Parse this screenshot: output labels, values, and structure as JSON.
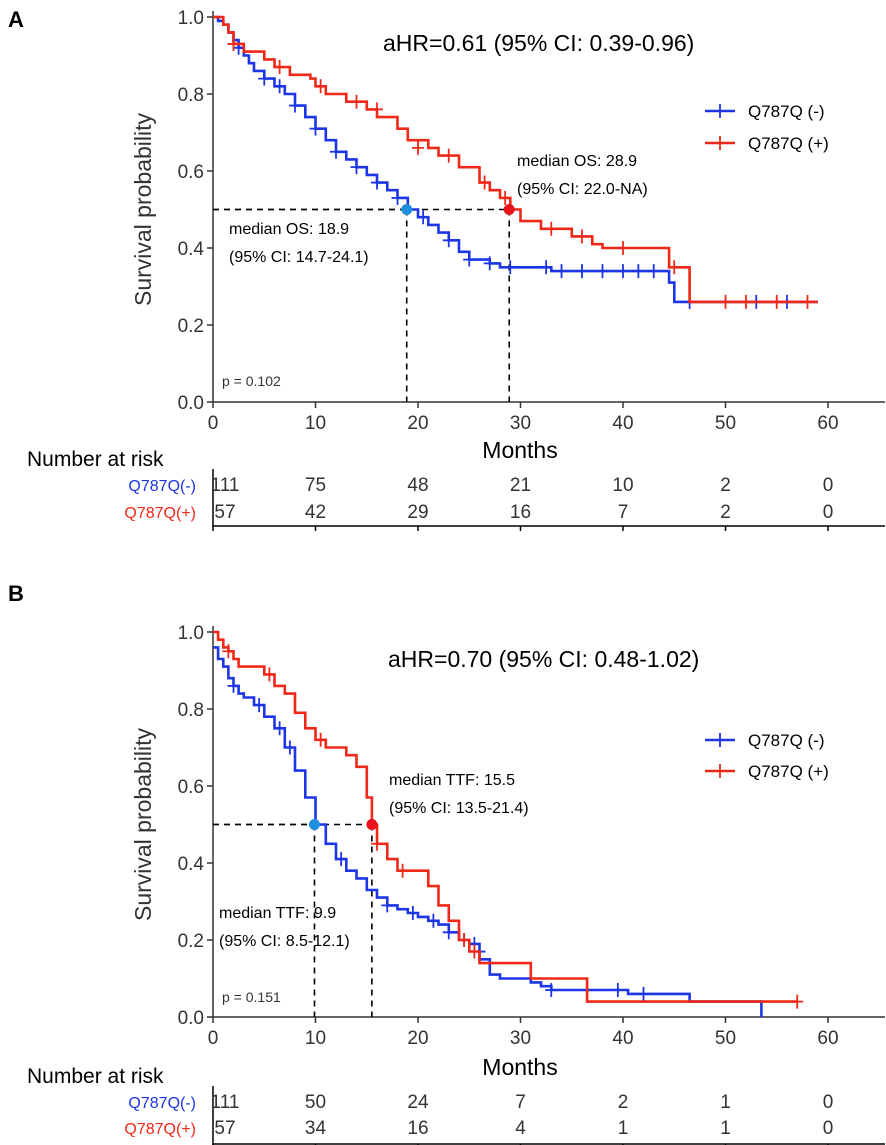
{
  "chart_data": [
    {
      "panel": "A",
      "type": "line",
      "subtype": "kaplan-meier",
      "title": "",
      "hr_text": "aHR=0.61 (95% CI: 0.39-0.96)",
      "xlabel": "Months",
      "ylabel": "Survival probability",
      "xlim": [
        0,
        65
      ],
      "ylim": [
        0,
        1
      ],
      "xticks": [
        "0",
        "10",
        "20",
        "30",
        "40",
        "50",
        "60"
      ],
      "yticks": [
        "0.0",
        "0.2",
        "0.4",
        "0.6",
        "0.8",
        "1.0"
      ],
      "pvalue": "p = 0.102",
      "legend": [
        "Q787Q (-)",
        "Q787Q (+)"
      ],
      "series": [
        {
          "name": "Q787Q (-)",
          "color": "#1c35e6",
          "steps": [
            [
              0,
              1.0
            ],
            [
              0.5,
              0.99
            ],
            [
              1,
              0.98
            ],
            [
              1.5,
              0.96
            ],
            [
              2,
              0.94
            ],
            [
              2.5,
              0.92
            ],
            [
              3,
              0.9
            ],
            [
              3.5,
              0.88
            ],
            [
              4,
              0.86
            ],
            [
              5,
              0.84
            ],
            [
              6,
              0.82
            ],
            [
              7,
              0.8
            ],
            [
              8,
              0.77
            ],
            [
              9,
              0.74
            ],
            [
              10,
              0.71
            ],
            [
              11,
              0.68
            ],
            [
              12,
              0.65
            ],
            [
              13,
              0.63
            ],
            [
              14,
              0.61
            ],
            [
              15,
              0.59
            ],
            [
              16,
              0.57
            ],
            [
              17,
              0.55
            ],
            [
              18,
              0.53
            ],
            [
              19,
              0.5
            ],
            [
              20,
              0.48
            ],
            [
              21,
              0.46
            ],
            [
              22,
              0.44
            ],
            [
              23,
              0.42
            ],
            [
              24,
              0.39
            ],
            [
              25,
              0.37
            ],
            [
              27,
              0.36
            ],
            [
              28,
              0.35
            ],
            [
              32,
              0.35
            ],
            [
              33,
              0.34
            ],
            [
              44,
              0.34
            ],
            [
              44.5,
              0.31
            ],
            [
              45,
              0.26
            ],
            [
              59,
              0.26
            ]
          ],
          "censors": [
            [
              2.5,
              0.92
            ],
            [
              5,
              0.84
            ],
            [
              6.5,
              0.82
            ],
            [
              8,
              0.77
            ],
            [
              10,
              0.71
            ],
            [
              12,
              0.65
            ],
            [
              14,
              0.61
            ],
            [
              16,
              0.57
            ],
            [
              18,
              0.53
            ],
            [
              20.5,
              0.48
            ],
            [
              23,
              0.42
            ],
            [
              25,
              0.37
            ],
            [
              27,
              0.36
            ],
            [
              29,
              0.35
            ],
            [
              32.5,
              0.35
            ],
            [
              34,
              0.34
            ],
            [
              36,
              0.34
            ],
            [
              38,
              0.34
            ],
            [
              40,
              0.34
            ],
            [
              41.5,
              0.34
            ],
            [
              43,
              0.34
            ],
            [
              46.5,
              0.26
            ],
            [
              53,
              0.26
            ],
            [
              56,
              0.26
            ]
          ],
          "median_x": 18.9
        },
        {
          "name": "Q787Q (+)",
          "color": "#f02818",
          "steps": [
            [
              0,
              1.0
            ],
            [
              1,
              0.98
            ],
            [
              1.5,
              0.96
            ],
            [
              2,
              0.93
            ],
            [
              3,
              0.91
            ],
            [
              4.5,
              0.91
            ],
            [
              5,
              0.89
            ],
            [
              6,
              0.87
            ],
            [
              7,
              0.87
            ],
            [
              7.5,
              0.85
            ],
            [
              9,
              0.85
            ],
            [
              9.5,
              0.84
            ],
            [
              10,
              0.82
            ],
            [
              11,
              0.8
            ],
            [
              13,
              0.78
            ],
            [
              15,
              0.76
            ],
            [
              16,
              0.74
            ],
            [
              18,
              0.71
            ],
            [
              19,
              0.68
            ],
            [
              21,
              0.66
            ],
            [
              22,
              0.64
            ],
            [
              24,
              0.61
            ],
            [
              26,
              0.57
            ],
            [
              27,
              0.55
            ],
            [
              28,
              0.53
            ],
            [
              29,
              0.5
            ],
            [
              30,
              0.47
            ],
            [
              32,
              0.45
            ],
            [
              35,
              0.43
            ],
            [
              37,
              0.41
            ],
            [
              38,
              0.4
            ],
            [
              44,
              0.4
            ],
            [
              44.5,
              0.35
            ],
            [
              46,
              0.35
            ],
            [
              46.5,
              0.26
            ],
            [
              59,
              0.26
            ]
          ],
          "censors": [
            [
              2,
              0.93
            ],
            [
              6.5,
              0.87
            ],
            [
              10.5,
              0.82
            ],
            [
              14,
              0.78
            ],
            [
              16,
              0.76
            ],
            [
              20,
              0.66
            ],
            [
              23,
              0.64
            ],
            [
              26.5,
              0.57
            ],
            [
              28.5,
              0.53
            ],
            [
              33,
              0.45
            ],
            [
              36,
              0.43
            ],
            [
              40,
              0.4
            ],
            [
              45,
              0.35
            ],
            [
              50,
              0.26
            ],
            [
              52,
              0.26
            ],
            [
              55,
              0.26
            ],
            [
              58,
              0.26
            ]
          ],
          "median_x": 28.9
        }
      ],
      "medians": [
        {
          "label": "median OS: 18.9",
          "ci": "(95% CI: 14.7-24.1)",
          "x": 18.9,
          "y": 0.5,
          "color": "#1e8fe0"
        },
        {
          "label": "median OS: 28.9",
          "ci": "(95% CI: 22.0-NA)",
          "x": 28.9,
          "y": 0.5,
          "color": "#e8131b"
        }
      ],
      "risk_table": {
        "title": "Number at risk",
        "rows": [
          {
            "label": "Q787Q(-)",
            "color": "#1c35e6",
            "values": [
              "111",
              "75",
              "48",
              "21",
              "10",
              "2",
              "0"
            ]
          },
          {
            "label": "Q787Q(+)",
            "color": "#f02818",
            "values": [
              "57",
              "42",
              "29",
              "16",
              "7",
              "2",
              "0"
            ]
          }
        ]
      }
    },
    {
      "panel": "B",
      "type": "line",
      "subtype": "kaplan-meier",
      "title": "",
      "hr_text": "aHR=0.70 (95% CI: 0.48-1.02)",
      "xlabel": "Months",
      "ylabel": "Survival probability",
      "xlim": [
        0,
        65
      ],
      "ylim": [
        0,
        1
      ],
      "xticks": [
        "0",
        "10",
        "20",
        "30",
        "40",
        "50",
        "60"
      ],
      "yticks": [
        "0.0",
        "0.2",
        "0.4",
        "0.6",
        "0.8",
        "1.0"
      ],
      "pvalue": "p = 0.151",
      "legend": [
        "Q787Q (-)",
        "Q787Q (+)"
      ],
      "series": [
        {
          "name": "Q787Q (-)",
          "color": "#1c35e6",
          "steps": [
            [
              0,
              0.96
            ],
            [
              0.5,
              0.93
            ],
            [
              1,
              0.91
            ],
            [
              1.5,
              0.88
            ],
            [
              2,
              0.86
            ],
            [
              2.5,
              0.84
            ],
            [
              3,
              0.83
            ],
            [
              4,
              0.81
            ],
            [
              5,
              0.78
            ],
            [
              6,
              0.75
            ],
            [
              7,
              0.7
            ],
            [
              8,
              0.64
            ],
            [
              9,
              0.57
            ],
            [
              10,
              0.5
            ],
            [
              11,
              0.45
            ],
            [
              12,
              0.41
            ],
            [
              13,
              0.38
            ],
            [
              14,
              0.36
            ],
            [
              15,
              0.33
            ],
            [
              16,
              0.31
            ],
            [
              17,
              0.29
            ],
            [
              18,
              0.28
            ],
            [
              19,
              0.27
            ],
            [
              20,
              0.26
            ],
            [
              21,
              0.25
            ],
            [
              22,
              0.24
            ],
            [
              23,
              0.22
            ],
            [
              24,
              0.2
            ],
            [
              25,
              0.19
            ],
            [
              26,
              0.15
            ],
            [
              27,
              0.11
            ],
            [
              28,
              0.1
            ],
            [
              31,
              0.09
            ],
            [
              32,
              0.08
            ],
            [
              33,
              0.07
            ],
            [
              40,
              0.07
            ],
            [
              40.5,
              0.06
            ],
            [
              46,
              0.06
            ],
            [
              46.5,
              0.04
            ],
            [
              53,
              0.04
            ],
            [
              53.5,
              0.0
            ]
          ],
          "censors": [
            [
              2,
              0.86
            ],
            [
              4.5,
              0.81
            ],
            [
              6.5,
              0.75
            ],
            [
              7.5,
              0.7
            ],
            [
              12.5,
              0.41
            ],
            [
              17,
              0.29
            ],
            [
              19.5,
              0.27
            ],
            [
              21.5,
              0.25
            ],
            [
              23,
              0.22
            ],
            [
              24.5,
              0.2
            ],
            [
              25.5,
              0.19
            ],
            [
              26,
              0.17
            ],
            [
              33,
              0.07
            ],
            [
              39.5,
              0.07
            ],
            [
              42,
              0.06
            ]
          ],
          "median_x": 9.9
        },
        {
          "name": "Q787Q (+)",
          "color": "#f02818",
          "steps": [
            [
              0,
              1.0
            ],
            [
              0.5,
              0.98
            ],
            [
              1,
              0.96
            ],
            [
              1.5,
              0.95
            ],
            [
              2,
              0.93
            ],
            [
              2.5,
              0.91
            ],
            [
              5,
              0.89
            ],
            [
              6,
              0.86
            ],
            [
              7,
              0.84
            ],
            [
              8,
              0.79
            ],
            [
              9,
              0.75
            ],
            [
              10,
              0.72
            ],
            [
              11,
              0.7
            ],
            [
              13,
              0.68
            ],
            [
              14,
              0.65
            ],
            [
              15,
              0.57
            ],
            [
              15.5,
              0.5
            ],
            [
              16,
              0.45
            ],
            [
              17,
              0.41
            ],
            [
              18,
              0.38
            ],
            [
              21,
              0.34
            ],
            [
              22,
              0.29
            ],
            [
              23,
              0.25
            ],
            [
              24,
              0.2
            ],
            [
              25,
              0.17
            ],
            [
              26,
              0.14
            ],
            [
              27,
              0.14
            ],
            [
              28,
              0.14
            ],
            [
              31,
              0.1
            ],
            [
              36,
              0.1
            ],
            [
              36.5,
              0.04
            ],
            [
              57,
              0.04
            ]
          ],
          "censors": [
            [
              1.5,
              0.95
            ],
            [
              5.5,
              0.89
            ],
            [
              10.5,
              0.72
            ],
            [
              16,
              0.45
            ],
            [
              18.5,
              0.38
            ],
            [
              24.5,
              0.2
            ],
            [
              25.5,
              0.17
            ],
            [
              57,
              0.04
            ]
          ],
          "median_x": 15.5
        }
      ],
      "medians": [
        {
          "label": "median TTF: 9.9",
          "ci": "(95% CI: 8.5-12.1)",
          "x": 9.9,
          "y": 0.5,
          "color": "#1e8fe0"
        },
        {
          "label": "median TTF: 15.5",
          "ci": "(95% CI: 13.5-21.4)",
          "x": 15.5,
          "y": 0.5,
          "color": "#e8131b"
        }
      ],
      "risk_table": {
        "title": "Number at risk",
        "rows": [
          {
            "label": "Q787Q(-)",
            "color": "#1c35e6",
            "values": [
              "111",
              "50",
              "24",
              "7",
              "2",
              "1",
              "0"
            ]
          },
          {
            "label": "Q787Q(+)",
            "color": "#f02818",
            "values": [
              "57",
              "34",
              "16",
              "4",
              "1",
              "1",
              "0"
            ]
          }
        ]
      }
    }
  ]
}
